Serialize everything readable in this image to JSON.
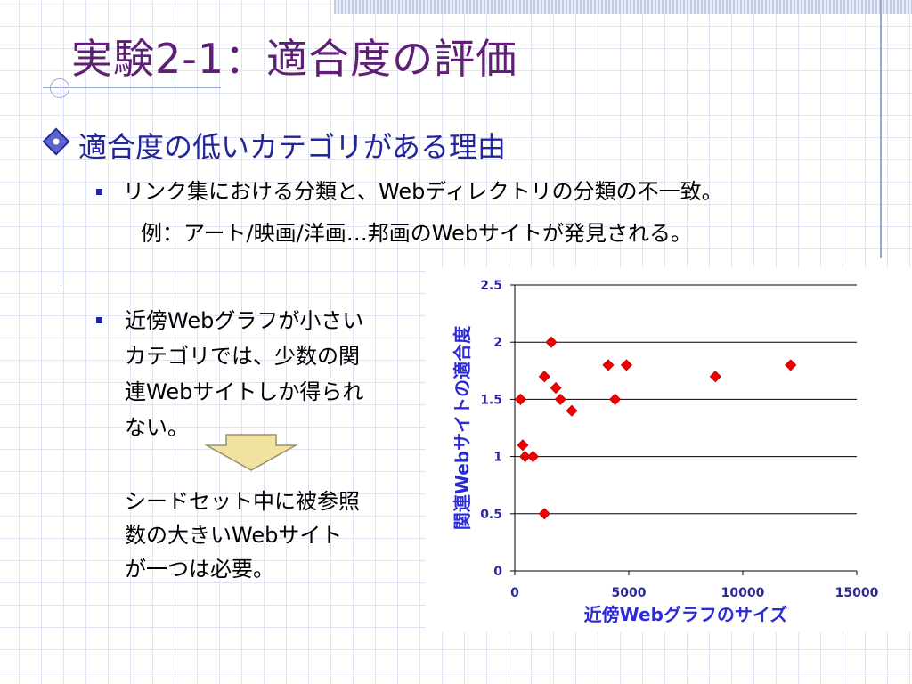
{
  "slide": {
    "title": "実験2-1：適合度の評価",
    "bullet1": "適合度の低いカテゴリがある理由",
    "sub1": "リンク集における分類と、Webディレクトリの分類の不一致。",
    "example": "例：アート/映画/洋画…邦画のWebサイトが発見される。",
    "sub2_lines": [
      "近傍Webグラフが小さい",
      "カテゴリでは、少数の関",
      "連Webサイトしか得られ",
      "ない。"
    ],
    "conclusion_lines": [
      "シードセット中に被参照",
      "数の大きいWebサイト",
      "が一つは必要。"
    ]
  },
  "arrow_icon": "down-arrow-icon",
  "colors": {
    "title": "#5e1f74",
    "bullet": "#22269a",
    "axis_label": "#2a2ad6",
    "marker": "#ee0000",
    "arrow_fill": "#f1e2a0"
  },
  "chart_data": {
    "type": "scatter",
    "xlabel": "近傍Webグラフのサイズ",
    "ylabel": "関連Webサイトの適合度",
    "xlim": [
      0,
      15000
    ],
    "ylim": [
      0,
      2.5
    ],
    "xticks": [
      "0",
      "5000",
      "10000",
      "15000"
    ],
    "yticks": [
      "0",
      "0.5",
      "1",
      "1.5",
      "2",
      "2.5"
    ],
    "grid": "horizontal",
    "marker": "diamond",
    "points": [
      {
        "x": 250,
        "y": 1.5
      },
      {
        "x": 350,
        "y": 1.1
      },
      {
        "x": 450,
        "y": 1.0
      },
      {
        "x": 800,
        "y": 1.0
      },
      {
        "x": 1300,
        "y": 0.5
      },
      {
        "x": 1300,
        "y": 1.7
      },
      {
        "x": 1600,
        "y": 2.0
      },
      {
        "x": 1800,
        "y": 1.6
      },
      {
        "x": 2000,
        "y": 1.5
      },
      {
        "x": 2500,
        "y": 1.4
      },
      {
        "x": 4100,
        "y": 1.8
      },
      {
        "x": 4400,
        "y": 1.5
      },
      {
        "x": 4900,
        "y": 1.8
      },
      {
        "x": 8800,
        "y": 1.7
      },
      {
        "x": 12100,
        "y": 1.8
      }
    ]
  }
}
